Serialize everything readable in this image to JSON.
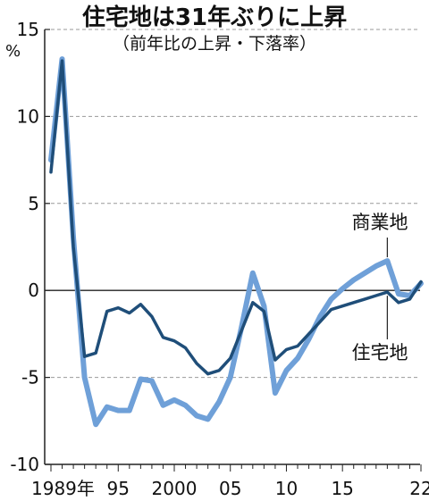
{
  "chart_data": {
    "type": "line",
    "title": "住宅地は31年ぶりに上昇",
    "subtitle": "（前年比の上昇・下落率）",
    "y_unit": "%",
    "ylim": [
      -10,
      15
    ],
    "y_ticks": [
      15,
      10,
      5,
      0,
      -5,
      -10
    ],
    "xlim": [
      1989,
      2022
    ],
    "x_ticks": [
      {
        "value": 1989,
        "label": "1989年"
      },
      {
        "value": 1995,
        "label": "95"
      },
      {
        "value": 2000,
        "label": "2000"
      },
      {
        "value": 2005,
        "label": "05"
      },
      {
        "value": 2010,
        "label": "10"
      },
      {
        "value": 2015,
        "label": "15"
      },
      {
        "value": 2022,
        "label": "22"
      }
    ],
    "grid": "horizontal dashed",
    "colors": {
      "residential": "#1f4e79",
      "commercial": "#6fa0d8",
      "zero_line": "#222222",
      "grid": "#999999"
    },
    "series": [
      {
        "name": "住宅地",
        "color": "#1f4e79",
        "x": [
          1989,
          1990,
          1991,
          1992,
          1993,
          1994,
          1995,
          1996,
          1997,
          1998,
          1999,
          2000,
          2001,
          2002,
          2003,
          2004,
          2005,
          2006,
          2007,
          2008,
          2009,
          2010,
          2011,
          2012,
          2013,
          2014,
          2015,
          2016,
          2017,
          2018,
          2019,
          2020,
          2021,
          2022
        ],
        "values": [
          6.8,
          13.2,
          2.5,
          -3.8,
          -3.6,
          -1.2,
          -1.0,
          -1.3,
          -0.8,
          -1.5,
          -2.7,
          -2.9,
          -3.3,
          -4.2,
          -4.8,
          -4.6,
          -3.9,
          -2.3,
          -0.7,
          -1.2,
          -4.0,
          -3.4,
          -3.2,
          -2.5,
          -1.8,
          -1.1,
          -0.9,
          -0.7,
          -0.5,
          -0.3,
          -0.1,
          -0.7,
          -0.5,
          0.5
        ]
      },
      {
        "name": "商業地",
        "color": "#6fa0d8",
        "x": [
          1989,
          1990,
          1991,
          1992,
          1993,
          1994,
          1995,
          1996,
          1997,
          1998,
          1999,
          2000,
          2001,
          2002,
          2003,
          2004,
          2005,
          2006,
          2007,
          2008,
          2009,
          2010,
          2011,
          2012,
          2013,
          2014,
          2015,
          2016,
          2017,
          2018,
          2019,
          2020,
          2021,
          2022
        ],
        "values": [
          7.5,
          13.3,
          3.0,
          -5.0,
          -7.7,
          -6.7,
          -6.9,
          -6.9,
          -5.1,
          -5.2,
          -6.6,
          -6.3,
          -6.6,
          -7.2,
          -7.4,
          -6.4,
          -5.0,
          -2.1,
          1.0,
          -0.9,
          -5.9,
          -4.6,
          -3.9,
          -2.8,
          -1.5,
          -0.5,
          0.1,
          0.6,
          1.0,
          1.4,
          1.7,
          -0.2,
          -0.3,
          0.4
        ]
      }
    ],
    "annotations": [
      {
        "text": "商業地",
        "series": "商業地"
      },
      {
        "text": "住宅地",
        "series": "住宅地"
      }
    ]
  }
}
